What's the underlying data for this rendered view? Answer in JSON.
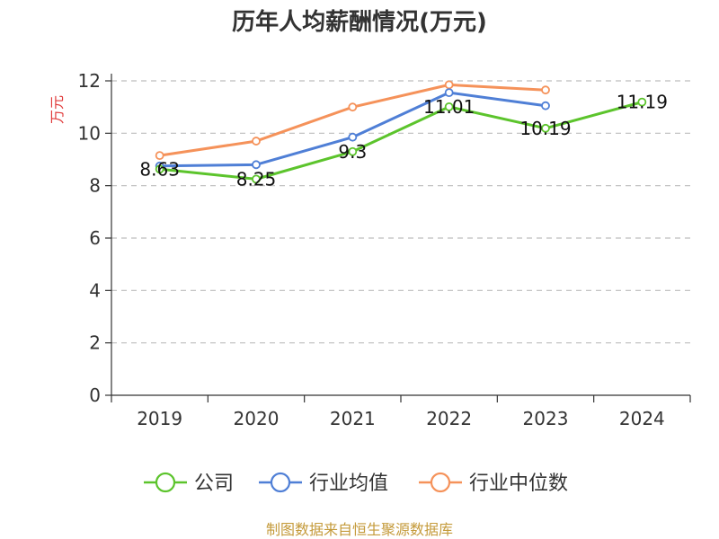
{
  "chart_data": {
    "type": "line",
    "title": "历年人均薪酬情况(万元)",
    "ylabel": "万元",
    "xlabel": "",
    "categories": [
      "2019",
      "2020",
      "2021",
      "2022",
      "2023",
      "2024"
    ],
    "ylim": [
      0,
      12
    ],
    "yticks": [
      0,
      2,
      4,
      6,
      8,
      10,
      12
    ],
    "grid": true,
    "legend_position": "bottom",
    "series": [
      {
        "name": "公司",
        "color": "#5cc42c",
        "values": [
          8.63,
          8.25,
          9.3,
          11.01,
          10.19,
          11.19
        ],
        "labels": [
          "8.63",
          "8.25",
          "9.3",
          "11.01",
          "10.19",
          "11.19"
        ]
      },
      {
        "name": "行业均值",
        "color": "#4f7fd6",
        "values": [
          8.75,
          8.8,
          9.85,
          11.55,
          11.05,
          null
        ]
      },
      {
        "name": "行业中位数",
        "color": "#f5925a",
        "values": [
          9.15,
          9.7,
          11.0,
          11.85,
          11.65,
          null
        ]
      }
    ]
  },
  "source": "制图数据来自恒生聚源数据库"
}
